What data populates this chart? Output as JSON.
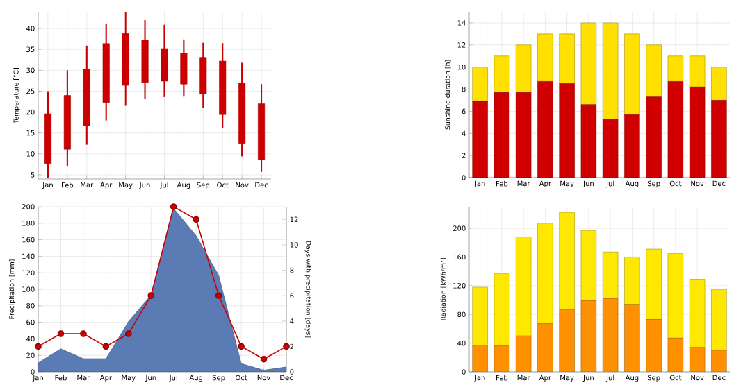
{
  "chart_data": [
    {
      "type": "candlestick",
      "categories": [
        "Jan",
        "Feb",
        "Mar",
        "Apr",
        "May",
        "Jun",
        "Jul",
        "Aug",
        "Sep",
        "Oct",
        "Nov",
        "Dec"
      ],
      "ylabel": "Temperature [°C]",
      "color": "#cc0000",
      "ohlc": [
        [
          7.7,
          25,
          4.2,
          19.6
        ],
        [
          11.1,
          30,
          7.1,
          24
        ],
        [
          16.7,
          35.9,
          12.2,
          30.3
        ],
        [
          22.3,
          41.2,
          18,
          36.4
        ],
        [
          26.4,
          44,
          21.5,
          38.8
        ],
        [
          27.1,
          42,
          23.1,
          37.2
        ],
        [
          27.4,
          40.9,
          23.6,
          35.2
        ],
        [
          26.7,
          37.4,
          23.7,
          34.1
        ],
        [
          24.4,
          36.6,
          21,
          33.1
        ],
        [
          19.4,
          36.5,
          16.3,
          32.2
        ],
        [
          12.5,
          31.8,
          9.4,
          26.9
        ],
        [
          8.6,
          26.7,
          5.7,
          22
        ]
      ],
      "ylim": [
        4,
        44
      ],
      "yticks": [
        5,
        10,
        15,
        20,
        25,
        30,
        35,
        40
      ],
      "grid": true
    },
    {
      "type": "bar",
      "stacked": true,
      "categories": [
        "Jan",
        "Feb",
        "Mar",
        "Apr",
        "May",
        "Jun",
        "Jul",
        "Aug",
        "Sep",
        "Oct",
        "Nov",
        "Dec"
      ],
      "ylabel": "Sunshine duration [h]",
      "series": [
        {
          "color": "#d00000",
          "values": [
            6.9,
            7.7,
            7.7,
            8.7,
            8.5,
            6.6,
            5.3,
            5.7,
            7.3,
            8.7,
            8.2,
            7.0
          ]
        },
        {
          "color": "#ffe000",
          "values": [
            3.1,
            3.3,
            4.3,
            4.3,
            4.5,
            7.4,
            8.7,
            7.3,
            4.7,
            2.3,
            2.8,
            3.0
          ]
        }
      ],
      "ylim": [
        0,
        15
      ],
      "yticks": [
        0,
        2,
        4,
        6,
        8,
        10,
        12,
        14
      ],
      "grid": true
    },
    {
      "type": "area",
      "categories": [
        "Jan",
        "Feb",
        "Mar",
        "Apr",
        "May",
        "Jun",
        "Jul",
        "Aug",
        "Sep",
        "Oct",
        "Nov",
        "Dec"
      ],
      "ylabel": "Precipitation [mm]",
      "y2label": "Days with precipitation [days]",
      "series": [
        {
          "type": "area",
          "color": "#5b7bb5",
          "values": [
            11,
            28,
            16,
            16,
            61,
            93,
            198,
            165,
            117,
            10,
            2,
            6
          ]
        },
        {
          "type": "line",
          "axis": "y2",
          "color": "#cc0000",
          "marker": "circle",
          "values": [
            2,
            3,
            3,
            2,
            3,
            6,
            13,
            12,
            6,
            2,
            1,
            2
          ]
        }
      ],
      "ylim": [
        0,
        200
      ],
      "yticks": [
        0,
        20,
        40,
        60,
        80,
        100,
        120,
        140,
        160,
        180,
        200
      ],
      "y2lim": [
        0,
        13
      ],
      "y2ticks": [
        0,
        2,
        4,
        6,
        8,
        10,
        12
      ],
      "grid": true
    },
    {
      "type": "bar",
      "stacked": true,
      "categories": [
        "Jan",
        "Feb",
        "Mar",
        "Apr",
        "May",
        "Jun",
        "Jul",
        "Aug",
        "Sep",
        "Oct",
        "Nov",
        "Dec"
      ],
      "ylabel": "Radiation [kWh/m²]",
      "series": [
        {
          "color": "#ff9000",
          "values": [
            37,
            36,
            50,
            67,
            87,
            99,
            102,
            94,
            73,
            47,
            34,
            30
          ]
        },
        {
          "color": "#ffe800",
          "values": [
            81,
            101,
            138,
            140,
            135,
            98,
            65,
            66,
            98,
            118,
            95,
            85
          ]
        }
      ],
      "ylim": [
        0,
        230
      ],
      "yticks": [
        0,
        40,
        80,
        120,
        160,
        200
      ],
      "grid": true
    }
  ]
}
